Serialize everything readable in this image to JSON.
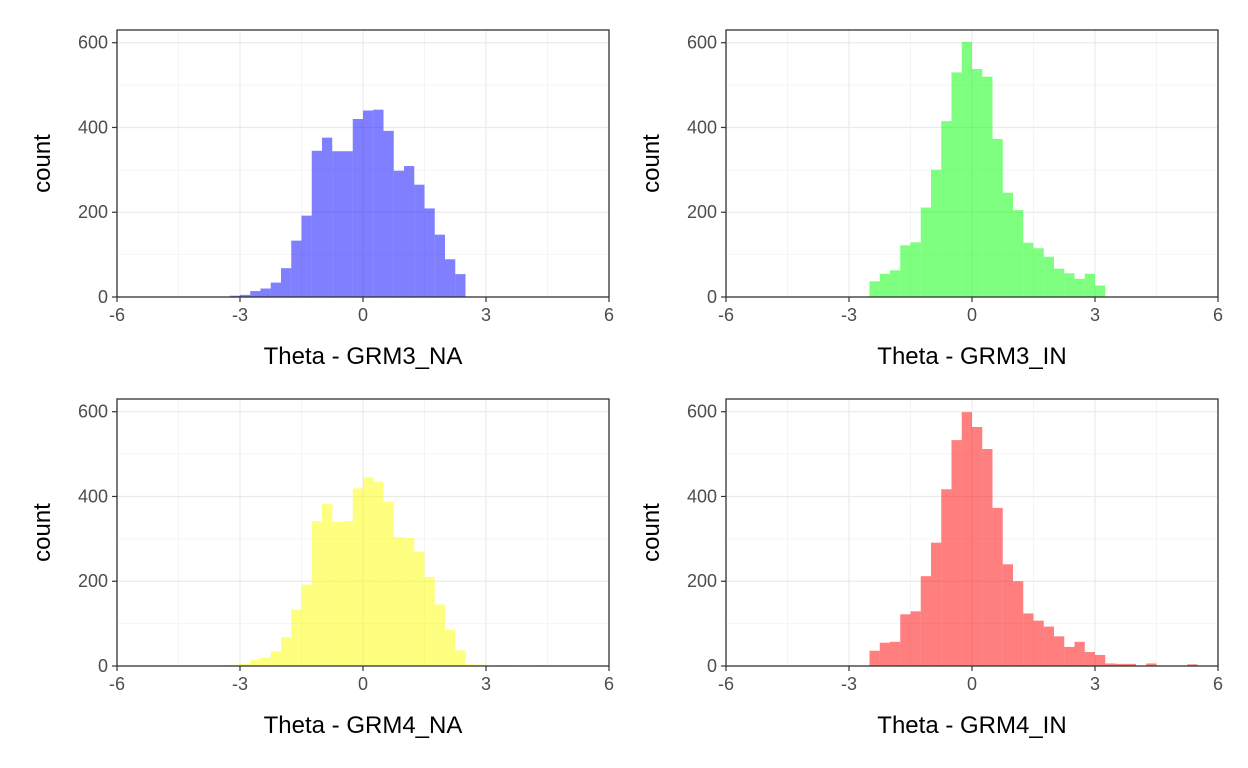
{
  "chart_data": [
    {
      "type": "bar",
      "xlabel": "Theta - GRM3_NA",
      "ylabel": "count",
      "xlim": [
        -6,
        6
      ],
      "ylim": [
        0,
        630
      ],
      "xticks": [
        -6,
        -3,
        0,
        3,
        6
      ],
      "yticks": [
        0,
        200,
        400,
        600
      ],
      "bin_width": 0.25,
      "color": "#0000FF",
      "bins": [
        {
          "x": -3.25,
          "count": 3
        },
        {
          "x": -3.0,
          "count": 5
        },
        {
          "x": -2.75,
          "count": 14
        },
        {
          "x": -2.5,
          "count": 20
        },
        {
          "x": -2.25,
          "count": 34
        },
        {
          "x": -2.0,
          "count": 68
        },
        {
          "x": -1.75,
          "count": 133
        },
        {
          "x": -1.5,
          "count": 192
        },
        {
          "x": -1.25,
          "count": 345
        },
        {
          "x": -1.0,
          "count": 376
        },
        {
          "x": -0.75,
          "count": 344
        },
        {
          "x": -0.5,
          "count": 344
        },
        {
          "x": -0.25,
          "count": 420
        },
        {
          "x": 0.0,
          "count": 440
        },
        {
          "x": 0.25,
          "count": 442
        },
        {
          "x": 0.5,
          "count": 392
        },
        {
          "x": 0.75,
          "count": 298
        },
        {
          "x": 1.0,
          "count": 309
        },
        {
          "x": 1.25,
          "count": 265
        },
        {
          "x": 1.5,
          "count": 209
        },
        {
          "x": 1.75,
          "count": 147
        },
        {
          "x": 2.0,
          "count": 89
        },
        {
          "x": 2.25,
          "count": 54
        }
      ]
    },
    {
      "type": "bar",
      "xlabel": "Theta - GRM3_IN",
      "ylabel": "count",
      "xlim": [
        -6,
        6
      ],
      "ylim": [
        0,
        630
      ],
      "xticks": [
        -6,
        -3,
        0,
        3,
        6
      ],
      "yticks": [
        0,
        200,
        400,
        600
      ],
      "bin_width": 0.25,
      "color": "#00FF00",
      "bins": [
        {
          "x": -2.5,
          "count": 37
        },
        {
          "x": -2.25,
          "count": 55
        },
        {
          "x": -2.0,
          "count": 63
        },
        {
          "x": -1.75,
          "count": 122
        },
        {
          "x": -1.5,
          "count": 129
        },
        {
          "x": -1.25,
          "count": 211
        },
        {
          "x": -1.0,
          "count": 300
        },
        {
          "x": -0.75,
          "count": 415
        },
        {
          "x": -0.5,
          "count": 530
        },
        {
          "x": -0.25,
          "count": 602
        },
        {
          "x": 0.0,
          "count": 538
        },
        {
          "x": 0.25,
          "count": 520
        },
        {
          "x": 0.5,
          "count": 373
        },
        {
          "x": 0.75,
          "count": 246
        },
        {
          "x": 1.0,
          "count": 205
        },
        {
          "x": 1.25,
          "count": 128
        },
        {
          "x": 1.5,
          "count": 115
        },
        {
          "x": 1.75,
          "count": 95
        },
        {
          "x": 2.0,
          "count": 67
        },
        {
          "x": 2.25,
          "count": 56
        },
        {
          "x": 2.5,
          "count": 43
        },
        {
          "x": 2.75,
          "count": 55
        },
        {
          "x": 3.0,
          "count": 27
        }
      ]
    },
    {
      "type": "bar",
      "xlabel": "Theta - GRM4_NA",
      "ylabel": "count",
      "xlim": [
        -6,
        6
      ],
      "ylim": [
        0,
        630
      ],
      "xticks": [
        -6,
        -3,
        0,
        3,
        6
      ],
      "yticks": [
        0,
        200,
        400,
        600
      ],
      "bin_width": 0.25,
      "color": "#FFFF00",
      "bins": [
        {
          "x": -3.5,
          "count": 2
        },
        {
          "x": -3.25,
          "count": 3
        },
        {
          "x": -3.0,
          "count": 5
        },
        {
          "x": -2.75,
          "count": 15
        },
        {
          "x": -2.5,
          "count": 20
        },
        {
          "x": -2.25,
          "count": 34
        },
        {
          "x": -2.0,
          "count": 68
        },
        {
          "x": -1.75,
          "count": 133
        },
        {
          "x": -1.5,
          "count": 192
        },
        {
          "x": -1.25,
          "count": 342
        },
        {
          "x": -1.0,
          "count": 382
        },
        {
          "x": -0.75,
          "count": 340
        },
        {
          "x": -0.5,
          "count": 342
        },
        {
          "x": -0.25,
          "count": 419
        },
        {
          "x": 0.0,
          "count": 445
        },
        {
          "x": 0.25,
          "count": 435
        },
        {
          "x": 0.5,
          "count": 388
        },
        {
          "x": 0.75,
          "count": 304
        },
        {
          "x": 1.0,
          "count": 302
        },
        {
          "x": 1.25,
          "count": 270
        },
        {
          "x": 1.5,
          "count": 210
        },
        {
          "x": 1.75,
          "count": 145
        },
        {
          "x": 2.0,
          "count": 85
        },
        {
          "x": 2.25,
          "count": 37
        },
        {
          "x": 2.5,
          "count": 4
        },
        {
          "x": 2.75,
          "count": 3
        },
        {
          "x": 3.25,
          "count": 2
        },
        {
          "x": 3.5,
          "count": 2
        },
        {
          "x": 4.25,
          "count": 2
        }
      ]
    },
    {
      "type": "bar",
      "xlabel": "Theta - GRM4_IN",
      "ylabel": "count",
      "xlim": [
        -6,
        6
      ],
      "ylim": [
        0,
        630
      ],
      "xticks": [
        -6,
        -3,
        0,
        3,
        6
      ],
      "yticks": [
        0,
        200,
        400,
        600
      ],
      "bin_width": 0.25,
      "color": "#FF0000",
      "bins": [
        {
          "x": -2.5,
          "count": 36
        },
        {
          "x": -2.25,
          "count": 55
        },
        {
          "x": -2.0,
          "count": 57
        },
        {
          "x": -1.75,
          "count": 122
        },
        {
          "x": -1.5,
          "count": 129
        },
        {
          "x": -1.25,
          "count": 212
        },
        {
          "x": -1.0,
          "count": 291
        },
        {
          "x": -0.75,
          "count": 417
        },
        {
          "x": -0.5,
          "count": 533
        },
        {
          "x": -0.25,
          "count": 599
        },
        {
          "x": 0.0,
          "count": 564
        },
        {
          "x": 0.25,
          "count": 512
        },
        {
          "x": 0.5,
          "count": 373
        },
        {
          "x": 0.75,
          "count": 240
        },
        {
          "x": 1.0,
          "count": 200
        },
        {
          "x": 1.25,
          "count": 124
        },
        {
          "x": 1.5,
          "count": 107
        },
        {
          "x": 1.75,
          "count": 93
        },
        {
          "x": 2.0,
          "count": 70
        },
        {
          "x": 2.25,
          "count": 45
        },
        {
          "x": 2.5,
          "count": 57
        },
        {
          "x": 2.75,
          "count": 33
        },
        {
          "x": 3.0,
          "count": 26
        },
        {
          "x": 3.25,
          "count": 6
        },
        {
          "x": 3.5,
          "count": 5
        },
        {
          "x": 3.75,
          "count": 5
        },
        {
          "x": 4.25,
          "count": 6
        },
        {
          "x": 5.25,
          "count": 4
        }
      ]
    }
  ]
}
